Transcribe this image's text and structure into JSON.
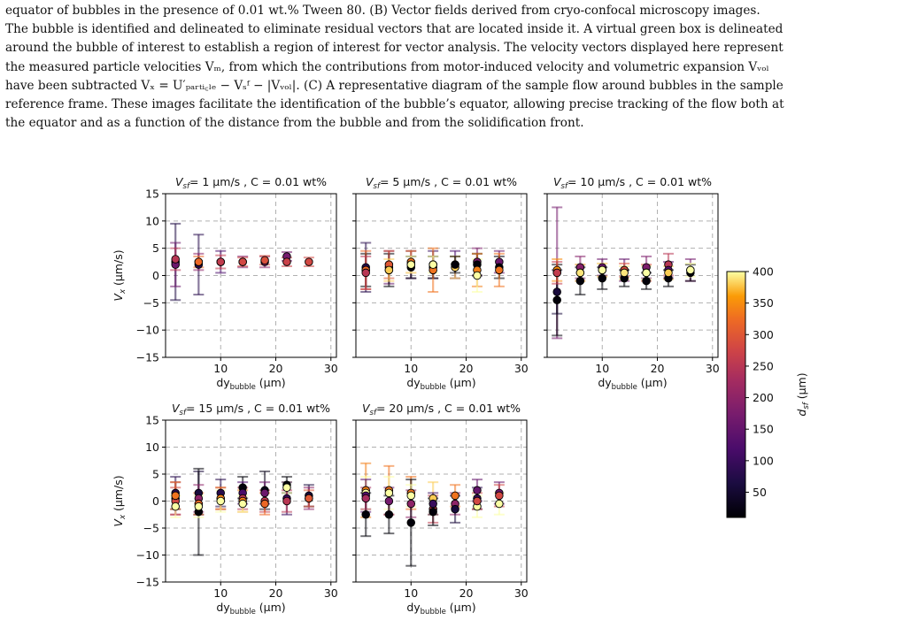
{
  "caption": {
    "lines": [
      "equator of bubbles in the presence of 0.01 wt.% Tween 80. (B) Vector fields derived from cryo-confocal microscopy images.",
      "The bubble is identified and delineated to eliminate residual vectors that are located inside it. A virtual green box is delineated",
      "around the bubble of interest to establish a region of interest for vector analysis. The velocity vectors displayed here represent",
      "the measured particle velocities Vₘ, from which the contributions from motor-induced velocity and volumetric expansion Vᵥₒₗ",
      "have been subtracted Vₓ = U′ₚₐᵣₜᵢ꜀ₗₑ − Vₛᶠ − |Vᵥₒₗ|. (C) A representative diagram of the sample flow around bubbles in the sample",
      "reference frame. These images facilitate the identification of the bubble’s equator, allowing precise tracking of the flow both at",
      "the equator and as a function of the distance from the bubble and from the solidification front."
    ]
  },
  "chart_data": {
    "type": "scatter",
    "ylabel": "V_x (μm/s)",
    "xlabel": "dy_bubble (μm)",
    "ylim": [
      -15,
      15
    ],
    "xlim": [
      0,
      31
    ],
    "xticks": [
      10,
      20,
      30
    ],
    "yticks": [
      -15,
      -10,
      -5,
      0,
      5,
      10,
      15
    ],
    "grid": "dashed",
    "colorbar": {
      "label": "d_sf (μm)",
      "range": [
        10,
        400
      ],
      "ticks": [
        50,
        100,
        150,
        200,
        250,
        300,
        350,
        400
      ],
      "colormap": "inferno"
    },
    "panels": [
      {
        "title": "V_sf= 1 μm/s , C = 0.01 wt%",
        "points": [
          {
            "x": 1.8,
            "y": 2.5,
            "err": 7,
            "d": 70
          },
          {
            "x": 1.8,
            "y": 2.0,
            "err": 4,
            "d": 160
          },
          {
            "x": 1.8,
            "y": 3.0,
            "err": 2,
            "d": 250
          },
          {
            "x": 6,
            "y": 2.0,
            "err": 5.5,
            "d": 80
          },
          {
            "x": 6,
            "y": 2.5,
            "err": 1.5,
            "d": 200
          },
          {
            "x": 6,
            "y": 2.5,
            "err": 1,
            "d": 320
          },
          {
            "x": 10,
            "y": 2.5,
            "err": 2,
            "d": 120
          },
          {
            "x": 10,
            "y": 2.5,
            "err": 1.2,
            "d": 260
          },
          {
            "x": 14,
            "y": 2.5,
            "err": 1,
            "d": 180
          },
          {
            "x": 14,
            "y": 2.5,
            "err": 0.8,
            "d": 280
          },
          {
            "x": 18,
            "y": 2.5,
            "err": 1,
            "d": 200
          },
          {
            "x": 18,
            "y": 2.8,
            "err": 0.8,
            "d": 290
          },
          {
            "x": 22,
            "y": 3.5,
            "err": 0.8,
            "d": 170
          },
          {
            "x": 22,
            "y": 2.5,
            "err": 0.8,
            "d": 270
          },
          {
            "x": 26,
            "y": 2.5,
            "err": 0.8,
            "d": 280
          }
        ]
      },
      {
        "title": "V_sf= 5 μm/s , C = 0.01 wt%",
        "points": [
          {
            "x": 1.8,
            "y": 1.5,
            "err": 4.5,
            "d": 80
          },
          {
            "x": 1.8,
            "y": 1.0,
            "err": 3,
            "d": 15
          },
          {
            "x": 1.8,
            "y": 1.0,
            "err": 3.5,
            "d": 320
          },
          {
            "x": 1.8,
            "y": 0.5,
            "err": 3,
            "d": 250
          },
          {
            "x": 6,
            "y": 1.5,
            "err": 3,
            "d": 150
          },
          {
            "x": 6,
            "y": 1.0,
            "err": 3,
            "d": 15
          },
          {
            "x": 6,
            "y": 2.0,
            "err": 2.5,
            "d": 300
          },
          {
            "x": 6,
            "y": 1.0,
            "err": 2,
            "d": 380
          },
          {
            "x": 10,
            "y": 2.0,
            "err": 2.5,
            "d": 120
          },
          {
            "x": 10,
            "y": 1.5,
            "err": 2,
            "d": 15
          },
          {
            "x": 10,
            "y": 2.5,
            "err": 2,
            "d": 330
          },
          {
            "x": 10,
            "y": 2.0,
            "err": 1.5,
            "d": 400
          },
          {
            "x": 14,
            "y": 2.0,
            "err": 2.5,
            "d": 100
          },
          {
            "x": 14,
            "y": 1.5,
            "err": 2,
            "d": 15
          },
          {
            "x": 14,
            "y": 1.0,
            "err": 4,
            "d": 330
          },
          {
            "x": 14,
            "y": 2.0,
            "err": 1.5,
            "d": 400
          },
          {
            "x": 18,
            "y": 2.0,
            "err": 2.5,
            "d": 120
          },
          {
            "x": 18,
            "y": 1.5,
            "err": 2,
            "d": 380
          },
          {
            "x": 18,
            "y": 2.0,
            "err": 1.5,
            "d": 15
          },
          {
            "x": 22,
            "y": 2.5,
            "err": 2.5,
            "d": 180
          },
          {
            "x": 22,
            "y": 2.0,
            "err": 2,
            "d": 15
          },
          {
            "x": 22,
            "y": 1.0,
            "err": 3,
            "d": 340
          },
          {
            "x": 22,
            "y": 0.0,
            "err": 3,
            "d": 400
          },
          {
            "x": 26,
            "y": 2.5,
            "err": 2,
            "d": 160
          },
          {
            "x": 26,
            "y": 1.5,
            "err": 2,
            "d": 15
          },
          {
            "x": 26,
            "y": 1.0,
            "err": 3,
            "d": 330
          }
        ]
      },
      {
        "title": "V_sf= 10 μm/s , C = 0.01 wt%",
        "points": [
          {
            "x": 1.8,
            "y": 0.5,
            "err": 12,
            "d": 170
          },
          {
            "x": 1.8,
            "y": -3,
            "err": 4,
            "d": 60
          },
          {
            "x": 1.8,
            "y": -4.5,
            "err": 6.5,
            "d": 15
          },
          {
            "x": 1.8,
            "y": 1.0,
            "err": 2,
            "d": 350
          },
          {
            "x": 1.8,
            "y": 0.5,
            "err": 2,
            "d": 260
          },
          {
            "x": 6,
            "y": 1.5,
            "err": 2,
            "d": 190
          },
          {
            "x": 6,
            "y": -1.0,
            "err": 2.5,
            "d": 15
          },
          {
            "x": 6,
            "y": 0.5,
            "err": 1.5,
            "d": 300
          },
          {
            "x": 6,
            "y": 0.5,
            "err": 1.5,
            "d": 390
          },
          {
            "x": 10,
            "y": 1.5,
            "err": 1.5,
            "d": 160
          },
          {
            "x": 10,
            "y": -0.5,
            "err": 2,
            "d": 15
          },
          {
            "x": 10,
            "y": 1.0,
            "err": 1.2,
            "d": 330
          },
          {
            "x": 10,
            "y": 1.0,
            "err": 1.2,
            "d": 400
          },
          {
            "x": 14,
            "y": 1.0,
            "err": 2,
            "d": 150
          },
          {
            "x": 14,
            "y": -0.5,
            "err": 1.5,
            "d": 15
          },
          {
            "x": 14,
            "y": 1.0,
            "err": 1.2,
            "d": 290
          },
          {
            "x": 14,
            "y": 0.5,
            "err": 1.2,
            "d": 390
          },
          {
            "x": 18,
            "y": 1.5,
            "err": 2,
            "d": 180
          },
          {
            "x": 18,
            "y": -1.0,
            "err": 1.5,
            "d": 15
          },
          {
            "x": 18,
            "y": 0.5,
            "err": 1.5,
            "d": 290
          },
          {
            "x": 18,
            "y": 0.5,
            "err": 1.2,
            "d": 400
          },
          {
            "x": 22,
            "y": 2.0,
            "err": 2,
            "d": 250
          },
          {
            "x": 22,
            "y": -0.5,
            "err": 1.5,
            "d": 15
          },
          {
            "x": 22,
            "y": 1.0,
            "err": 1.5,
            "d": 130
          },
          {
            "x": 22,
            "y": 0.5,
            "err": 1.2,
            "d": 380
          },
          {
            "x": 26,
            "y": 1.0,
            "err": 2,
            "d": 170
          },
          {
            "x": 26,
            "y": 0.5,
            "err": 1.5,
            "d": 15
          },
          {
            "x": 26,
            "y": 1.0,
            "err": 1.2,
            "d": 400
          }
        ]
      },
      {
        "title": "V_sf= 15 μm/s , C = 0.01 wt%",
        "points": [
          {
            "x": 1.8,
            "y": 1.5,
            "err": 3,
            "d": 80
          },
          {
            "x": 1.8,
            "y": 0.5,
            "err": 3,
            "d": 190
          },
          {
            "x": 1.8,
            "y": 0,
            "err": 2.5,
            "d": 280
          },
          {
            "x": 1.8,
            "y": -1,
            "err": 2,
            "d": 400
          },
          {
            "x": 1.8,
            "y": 1.0,
            "err": 2.5,
            "d": 330
          },
          {
            "x": 6,
            "y": 1.5,
            "err": 4,
            "d": 60
          },
          {
            "x": 6,
            "y": -2,
            "err": 8,
            "d": 15
          },
          {
            "x": 6,
            "y": 0.5,
            "err": 2.5,
            "d": 200
          },
          {
            "x": 6,
            "y": -0.5,
            "err": 2,
            "d": 320
          },
          {
            "x": 6,
            "y": -1.0,
            "err": 2,
            "d": 400
          },
          {
            "x": 10,
            "y": 1.5,
            "err": 2.5,
            "d": 80
          },
          {
            "x": 10,
            "y": 0.5,
            "err": 2,
            "d": 230
          },
          {
            "x": 10,
            "y": 0.5,
            "err": 2,
            "d": 340
          },
          {
            "x": 10,
            "y": 0.0,
            "err": 2,
            "d": 400
          },
          {
            "x": 14,
            "y": 2.5,
            "err": 2,
            "d": 15
          },
          {
            "x": 14,
            "y": 1.5,
            "err": 2,
            "d": 120
          },
          {
            "x": 14,
            "y": 0.5,
            "err": 2,
            "d": 250
          },
          {
            "x": 14,
            "y": 0.0,
            "err": 2,
            "d": 340
          },
          {
            "x": 14,
            "y": -0.5,
            "err": 1.5,
            "d": 400
          },
          {
            "x": 18,
            "y": 2.0,
            "err": 3.5,
            "d": 30
          },
          {
            "x": 18,
            "y": 1.5,
            "err": 2,
            "d": 160
          },
          {
            "x": 18,
            "y": 0.0,
            "err": 2,
            "d": 260
          },
          {
            "x": 18,
            "y": -0.5,
            "err": 2,
            "d": 320
          },
          {
            "x": 22,
            "y": 3.0,
            "err": 1.5,
            "d": 15
          },
          {
            "x": 22,
            "y": 2.5,
            "err": 1,
            "d": 400
          },
          {
            "x": 22,
            "y": 0.5,
            "err": 3,
            "d": 100
          },
          {
            "x": 22,
            "y": 0.0,
            "err": 2,
            "d": 250
          },
          {
            "x": 26,
            "y": 1.0,
            "err": 2,
            "d": 60
          },
          {
            "x": 26,
            "y": 0.5,
            "err": 2,
            "d": 200
          },
          {
            "x": 26,
            "y": 0.5,
            "err": 1.5,
            "d": 300
          }
        ]
      },
      {
        "title": "V_sf= 20 μm/s , C = 0.01 wt%",
        "points": [
          {
            "x": 1.8,
            "y": 2.0,
            "err": 5,
            "d": 340
          },
          {
            "x": 1.8,
            "y": 1.5,
            "err": 3,
            "d": 400
          },
          {
            "x": 1.8,
            "y": 1.0,
            "err": 3,
            "d": 130
          },
          {
            "x": 1.8,
            "y": -2.5,
            "err": 4,
            "d": 15
          },
          {
            "x": 1.8,
            "y": 0.5,
            "err": 2,
            "d": 230
          },
          {
            "x": 6,
            "y": 2.0,
            "err": 4.5,
            "d": 330
          },
          {
            "x": 6,
            "y": 1.5,
            "err": 3,
            "d": 400
          },
          {
            "x": 6,
            "y": 0.0,
            "err": 2.5,
            "d": 170
          },
          {
            "x": 6,
            "y": -2.5,
            "err": 3.5,
            "d": 15
          },
          {
            "x": 10,
            "y": 1.5,
            "err": 3,
            "d": 330
          },
          {
            "x": 10,
            "y": -0.5,
            "err": 2.5,
            "d": 200
          },
          {
            "x": 10,
            "y": -4.0,
            "err": 8,
            "d": 15
          },
          {
            "x": 10,
            "y": 1.0,
            "err": 2,
            "d": 400
          },
          {
            "x": 14,
            "y": 0.5,
            "err": 3,
            "d": 380
          },
          {
            "x": 14,
            "y": -1.5,
            "err": 2.5,
            "d": 260
          },
          {
            "x": 14,
            "y": -0.5,
            "err": 2,
            "d": 100
          },
          {
            "x": 14,
            "y": -2.0,
            "err": 2.5,
            "d": 15
          },
          {
            "x": 18,
            "y": 1.0,
            "err": 2,
            "d": 330
          },
          {
            "x": 18,
            "y": -0.5,
            "err": 2,
            "d": 200
          },
          {
            "x": 18,
            "y": -1.5,
            "err": 2.5,
            "d": 60
          },
          {
            "x": 22,
            "y": 2.0,
            "err": 2,
            "d": 150
          },
          {
            "x": 22,
            "y": 0.5,
            "err": 2,
            "d": 90
          },
          {
            "x": 22,
            "y": -1.0,
            "err": 2,
            "d": 400
          },
          {
            "x": 22,
            "y": 0.0,
            "err": 1.5,
            "d": 280
          },
          {
            "x": 26,
            "y": 1.5,
            "err": 2,
            "d": 160
          },
          {
            "x": 26,
            "y": 1.0,
            "err": 2,
            "d": 280
          },
          {
            "x": 26,
            "y": -0.5,
            "err": 2,
            "d": 400
          }
        ]
      }
    ]
  }
}
